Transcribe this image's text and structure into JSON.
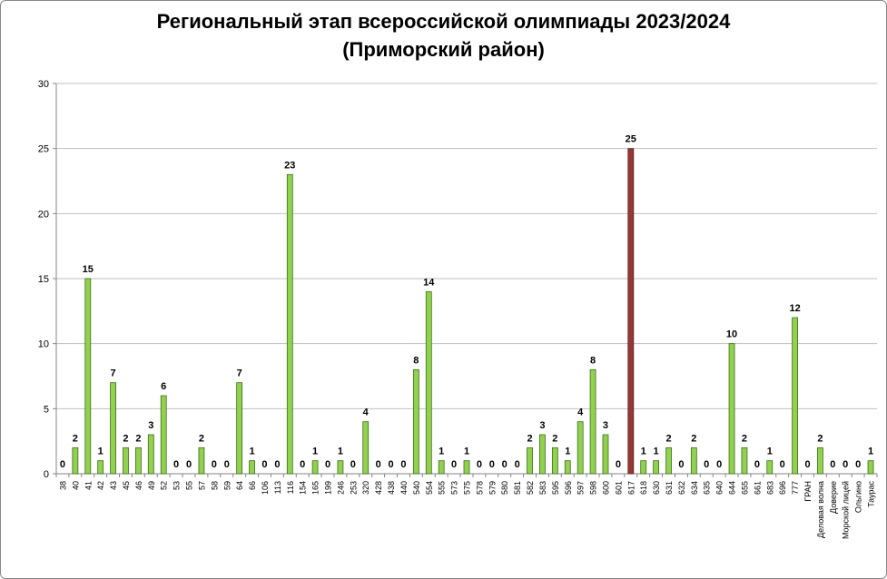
{
  "chart_data": {
    "type": "bar",
    "title_line1": "Региональный этап всероссийской олимпиады 2023/2024",
    "title_line2": "(Приморский район)",
    "xlabel": "",
    "ylabel": "",
    "ylim": [
      0,
      30
    ],
    "yticks": [
      0,
      5,
      10,
      15,
      20,
      25,
      30
    ],
    "grid": true,
    "legend": "none",
    "colors": {
      "default": "#92d050",
      "highlight": "#953735",
      "grid": "#bfbfbf",
      "axis": "#868686"
    },
    "highlight_category": "617",
    "categories": [
      "38",
      "40",
      "41",
      "42",
      "43",
      "45",
      "46",
      "49",
      "52",
      "53",
      "55",
      "57",
      "58",
      "59",
      "64",
      "66",
      "106",
      "113",
      "116",
      "154",
      "165",
      "199",
      "246",
      "253",
      "320",
      "428",
      "438",
      "440",
      "540",
      "554",
      "555",
      "573",
      "575",
      "578",
      "579",
      "580",
      "581",
      "582",
      "583",
      "595",
      "596",
      "597",
      "598",
      "600",
      "601",
      "617",
      "618",
      "630",
      "631",
      "632",
      "634",
      "635",
      "640",
      "644",
      "655",
      "661",
      "683",
      "696",
      "777",
      "ГРАН",
      "Деловая волна",
      "Доверие",
      "Морской лицей",
      "Ольгино",
      "Таурас"
    ],
    "values": [
      0,
      2,
      15,
      1,
      7,
      2,
      2,
      3,
      6,
      0,
      0,
      2,
      0,
      0,
      7,
      1,
      0,
      0,
      23,
      0,
      1,
      0,
      1,
      0,
      4,
      0,
      0,
      0,
      8,
      14,
      1,
      0,
      1,
      0,
      0,
      0,
      0,
      2,
      3,
      2,
      1,
      4,
      8,
      3,
      0,
      25,
      1,
      1,
      2,
      0,
      2,
      0,
      0,
      10,
      2,
      0,
      1,
      0,
      12,
      0,
      2,
      0,
      0,
      0,
      1
    ]
  }
}
